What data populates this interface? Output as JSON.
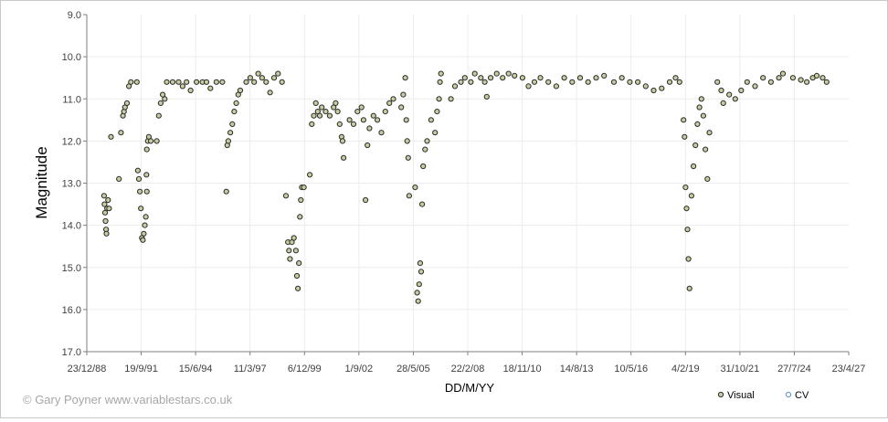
{
  "copyright": "© Gary Poyner www.variablestars.co.uk",
  "chart_data": {
    "type": "scatter",
    "xlabel": "DD/M/YY",
    "ylabel": "Magnitude",
    "y_inverted": true,
    "ylim": [
      9.0,
      17.0
    ],
    "y_ticks": [
      "9.0",
      "10.0",
      "11.0",
      "12.0",
      "13.0",
      "14.0",
      "15.0",
      "16.0",
      "17.0"
    ],
    "x_ticks": [
      "23/12/88",
      "19/9/91",
      "15/6/94",
      "11/3/97",
      "6/12/99",
      "1/9/02",
      "28/5/05",
      "22/2/08",
      "18/11/10",
      "14/8/13",
      "10/5/16",
      "4/2/19",
      "31/10/21",
      "27/7/24",
      "23/4/27"
    ],
    "grid": true,
    "legend": "bottom-right",
    "colors": {
      "visual_fill": "#c9cc9e",
      "visual_edge": "#2b2b2b",
      "cv_edge": "#5b8fd6",
      "grid": "#ececec",
      "axis": "#7f7f7f"
    },
    "series": [
      {
        "name": "Visual",
        "marker": "filled-circle",
        "points": [
          [
            1989.85,
            13.3
          ],
          [
            1989.87,
            13.5
          ],
          [
            1989.9,
            13.7
          ],
          [
            1989.92,
            13.9
          ],
          [
            1989.95,
            14.1
          ],
          [
            1989.97,
            14.2
          ],
          [
            1990.0,
            13.6
          ],
          [
            1990.05,
            13.4
          ],
          [
            1990.1,
            13.6
          ],
          [
            1990.2,
            11.9
          ],
          [
            1990.6,
            12.9
          ],
          [
            1990.7,
            11.8
          ],
          [
            1990.8,
            11.4
          ],
          [
            1990.85,
            11.3
          ],
          [
            1990.9,
            11.2
          ],
          [
            1991.0,
            11.1
          ],
          [
            1991.1,
            10.7
          ],
          [
            1991.2,
            10.6
          ],
          [
            1991.5,
            10.6
          ],
          [
            1991.55,
            12.7
          ],
          [
            1991.6,
            12.9
          ],
          [
            1991.65,
            13.2
          ],
          [
            1991.7,
            13.6
          ],
          [
            1991.75,
            14.3
          ],
          [
            1991.8,
            14.35
          ],
          [
            1991.85,
            14.2
          ],
          [
            1991.9,
            14.0
          ],
          [
            1991.95,
            13.8
          ],
          [
            1992.0,
            13.2
          ],
          [
            1991.98,
            12.8
          ],
          [
            1992.0,
            12.2
          ],
          [
            1992.05,
            12.0
          ],
          [
            1992.1,
            11.9
          ],
          [
            1992.2,
            12.0
          ],
          [
            1992.5,
            12.0
          ],
          [
            1992.6,
            11.4
          ],
          [
            1992.7,
            11.1
          ],
          [
            1992.8,
            10.9
          ],
          [
            1992.9,
            11.0
          ],
          [
            1993.0,
            10.6
          ],
          [
            1993.3,
            10.6
          ],
          [
            1993.6,
            10.6
          ],
          [
            1993.8,
            10.7
          ],
          [
            1994.0,
            10.6
          ],
          [
            1994.2,
            10.8
          ],
          [
            1994.5,
            10.6
          ],
          [
            1994.8,
            10.6
          ],
          [
            1995.0,
            10.6
          ],
          [
            1995.2,
            10.75
          ],
          [
            1995.5,
            10.6
          ],
          [
            1995.8,
            10.6
          ],
          [
            1996.0,
            13.2
          ],
          [
            1996.05,
            12.1
          ],
          [
            1996.1,
            12.0
          ],
          [
            1996.2,
            11.8
          ],
          [
            1996.3,
            11.6
          ],
          [
            1996.4,
            11.3
          ],
          [
            1996.5,
            11.1
          ],
          [
            1996.6,
            10.9
          ],
          [
            1996.7,
            10.8
          ],
          [
            1997.0,
            10.6
          ],
          [
            1997.2,
            10.5
          ],
          [
            1997.4,
            10.6
          ],
          [
            1997.6,
            10.4
          ],
          [
            1997.8,
            10.5
          ],
          [
            1998.0,
            10.6
          ],
          [
            1998.2,
            10.85
          ],
          [
            1998.4,
            10.5
          ],
          [
            1998.6,
            10.4
          ],
          [
            1998.8,
            10.6
          ],
          [
            1999.0,
            13.3
          ],
          [
            1999.1,
            14.4
          ],
          [
            1999.15,
            14.6
          ],
          [
            1999.2,
            14.8
          ],
          [
            1999.3,
            14.4
          ],
          [
            1999.4,
            14.3
          ],
          [
            1999.5,
            14.6
          ],
          [
            1999.55,
            15.2
          ],
          [
            1999.6,
            15.5
          ],
          [
            1999.65,
            14.9
          ],
          [
            1999.7,
            13.8
          ],
          [
            1999.75,
            13.4
          ],
          [
            1999.8,
            13.1
          ],
          [
            1999.9,
            13.1
          ],
          [
            2000.2,
            12.8
          ],
          [
            2000.3,
            11.6
          ],
          [
            2000.4,
            11.4
          ],
          [
            2000.5,
            11.1
          ],
          [
            2000.6,
            11.3
          ],
          [
            2000.7,
            11.4
          ],
          [
            2000.8,
            11.2
          ],
          [
            2001.0,
            11.3
          ],
          [
            2001.2,
            11.4
          ],
          [
            2001.4,
            11.2
          ],
          [
            2001.5,
            11.1
          ],
          [
            2001.6,
            11.3
          ],
          [
            2001.7,
            11.6
          ],
          [
            2001.8,
            11.9
          ],
          [
            2001.85,
            12.0
          ],
          [
            2001.9,
            12.4
          ],
          [
            2002.2,
            11.5
          ],
          [
            2002.4,
            11.6
          ],
          [
            2002.6,
            11.3
          ],
          [
            2002.8,
            11.2
          ],
          [
            2002.9,
            11.5
          ],
          [
            2003.0,
            13.4
          ],
          [
            2003.1,
            12.1
          ],
          [
            2003.2,
            11.7
          ],
          [
            2003.4,
            11.4
          ],
          [
            2003.6,
            11.5
          ],
          [
            2003.8,
            11.8
          ],
          [
            2004.0,
            11.3
          ],
          [
            2004.2,
            11.1
          ],
          [
            2004.4,
            11.0
          ],
          [
            2004.8,
            11.2
          ],
          [
            2004.9,
            10.9
          ],
          [
            2005.0,
            10.5
          ],
          [
            2005.05,
            11.5
          ],
          [
            2005.1,
            12.0
          ],
          [
            2005.15,
            12.4
          ],
          [
            2005.2,
            13.3
          ],
          [
            2005.5,
            13.1
          ],
          [
            2005.6,
            15.6
          ],
          [
            2005.65,
            15.8
          ],
          [
            2005.7,
            15.4
          ],
          [
            2005.75,
            14.9
          ],
          [
            2005.8,
            15.1
          ],
          [
            2005.85,
            13.5
          ],
          [
            2005.9,
            12.6
          ],
          [
            2006.0,
            12.2
          ],
          [
            2006.1,
            12.0
          ],
          [
            2006.3,
            11.5
          ],
          [
            2006.5,
            11.8
          ],
          [
            2006.6,
            11.3
          ],
          [
            2006.7,
            11.0
          ],
          [
            2006.75,
            10.6
          ],
          [
            2006.8,
            10.4
          ],
          [
            2007.3,
            11.0
          ],
          [
            2007.5,
            10.7
          ],
          [
            2007.8,
            10.6
          ],
          [
            2008.0,
            10.5
          ],
          [
            2008.3,
            10.6
          ],
          [
            2008.5,
            10.4
          ],
          [
            2008.8,
            10.5
          ],
          [
            2009.0,
            10.6
          ],
          [
            2009.1,
            10.95
          ],
          [
            2009.3,
            10.5
          ],
          [
            2009.6,
            10.4
          ],
          [
            2009.9,
            10.5
          ],
          [
            2010.2,
            10.4
          ],
          [
            2010.5,
            10.45
          ],
          [
            2010.9,
            10.5
          ],
          [
            2011.2,
            10.7
          ],
          [
            2011.5,
            10.6
          ],
          [
            2011.8,
            10.5
          ],
          [
            2012.2,
            10.6
          ],
          [
            2012.6,
            10.7
          ],
          [
            2013.0,
            10.5
          ],
          [
            2013.4,
            10.6
          ],
          [
            2013.8,
            10.5
          ],
          [
            2014.2,
            10.6
          ],
          [
            2014.6,
            10.5
          ],
          [
            2015.0,
            10.45
          ],
          [
            2015.5,
            10.6
          ],
          [
            2015.9,
            10.5
          ],
          [
            2016.3,
            10.6
          ],
          [
            2016.7,
            10.6
          ],
          [
            2017.1,
            10.7
          ],
          [
            2017.5,
            10.8
          ],
          [
            2017.9,
            10.75
          ],
          [
            2018.3,
            10.6
          ],
          [
            2018.6,
            10.5
          ],
          [
            2018.8,
            10.6
          ],
          [
            2019.0,
            11.5
          ],
          [
            2019.05,
            11.9
          ],
          [
            2019.1,
            13.1
          ],
          [
            2019.15,
            13.6
          ],
          [
            2019.2,
            14.1
          ],
          [
            2019.25,
            14.8
          ],
          [
            2019.3,
            15.5
          ],
          [
            2019.4,
            13.3
          ],
          [
            2019.5,
            12.6
          ],
          [
            2019.6,
            12.1
          ],
          [
            2019.7,
            11.6
          ],
          [
            2019.8,
            11.2
          ],
          [
            2019.9,
            11.0
          ],
          [
            2020.0,
            11.4
          ],
          [
            2020.1,
            12.2
          ],
          [
            2020.2,
            12.9
          ],
          [
            2020.3,
            11.8
          ],
          [
            2020.7,
            10.6
          ],
          [
            2020.9,
            10.8
          ],
          [
            2021.0,
            11.1
          ],
          [
            2021.3,
            10.9
          ],
          [
            2021.6,
            11.0
          ],
          [
            2021.9,
            10.8
          ],
          [
            2022.2,
            10.6
          ],
          [
            2022.6,
            10.7
          ],
          [
            2023.0,
            10.5
          ],
          [
            2023.4,
            10.6
          ],
          [
            2023.8,
            10.5
          ],
          [
            2024.0,
            10.4
          ],
          [
            2024.5,
            10.5
          ],
          [
            2024.9,
            10.55
          ],
          [
            2025.2,
            10.6
          ],
          [
            2025.5,
            10.5
          ],
          [
            2025.7,
            10.45
          ],
          [
            2026.0,
            10.5
          ],
          [
            2026.2,
            10.6
          ]
        ]
      },
      {
        "name": "CV",
        "marker": "open-circle",
        "points": []
      }
    ]
  }
}
